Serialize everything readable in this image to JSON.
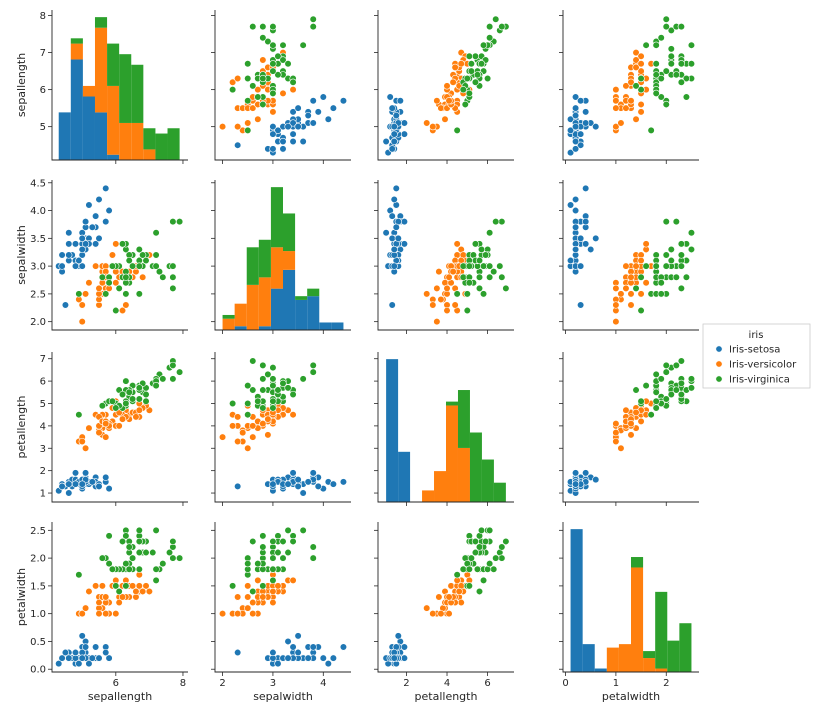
{
  "chart_data": {
    "type": "scatter",
    "variables": [
      "sepallength",
      "sepalwidth",
      "petallength",
      "petalwidth"
    ],
    "legend": {
      "title": "iris",
      "placement": "center-right",
      "entries": [
        "Iris-setosa",
        "Iris-versicolor",
        "Iris-virginica"
      ]
    },
    "colors": {
      "Iris-setosa": "#1f77b4",
      "Iris-versicolor": "#ff7f0e",
      "Iris-virginica": "#2ca02c"
    },
    "diagonal": "stacked-histogram",
    "grid": false,
    "axes": [
      {
        "var": "sepallength",
        "lim": [
          4.1,
          8.15
        ],
        "ticks": [
          6,
          8
        ],
        "ytick_labels": [
          "5",
          "6",
          "7",
          "8"
        ],
        "yticks": [
          5,
          6,
          7,
          8
        ]
      },
      {
        "var": "sepalwidth",
        "lim": [
          1.85,
          4.55
        ],
        "ticks": [
          2,
          3,
          4
        ],
        "ytick_labels": [
          "2.0",
          "2.5",
          "3.0",
          "3.5",
          "4.0",
          "4.5"
        ],
        "yticks": [
          2.0,
          2.5,
          3.0,
          3.5,
          4.0,
          4.5
        ]
      },
      {
        "var": "petallength",
        "lim": [
          0.6,
          7.3
        ],
        "ticks": [
          2,
          4,
          6
        ],
        "ytick_labels": [
          "1",
          "2",
          "3",
          "4",
          "5",
          "6",
          "7"
        ],
        "yticks": [
          1,
          2,
          3,
          4,
          5,
          6,
          7
        ]
      },
      {
        "var": "petalwidth",
        "lim": [
          -0.05,
          2.65
        ],
        "ticks": [
          0,
          1,
          2
        ],
        "ytick_labels": [
          "0.0",
          "0.5",
          "1.0",
          "1.5",
          "2.0",
          "2.5"
        ],
        "yticks": [
          0.0,
          0.5,
          1.0,
          1.5,
          2.0,
          2.5
        ]
      }
    ],
    "xtick_labels": [
      [
        "6",
        "8"
      ],
      [
        "2",
        "3",
        "4"
      ],
      [
        "2",
        "4",
        "6"
      ],
      [
        "0",
        "1",
        "2"
      ]
    ],
    "series": [
      {
        "name": "Iris-setosa",
        "sepallength": [
          5.1,
          4.9,
          4.7,
          4.6,
          5.0,
          5.4,
          4.6,
          5.0,
          4.4,
          4.9,
          5.4,
          4.8,
          4.8,
          4.3,
          5.8,
          5.7,
          5.4,
          5.1,
          5.7,
          5.1,
          5.4,
          5.1,
          4.6,
          5.1,
          4.8,
          5.0,
          5.0,
          5.2,
          5.2,
          4.7,
          4.8,
          5.4,
          5.2,
          5.5,
          4.9,
          5.0,
          5.5,
          4.9,
          4.4,
          5.1,
          5.0,
          4.5,
          4.4,
          5.0,
          5.1,
          4.8,
          5.1,
          4.6,
          5.3,
          5.0
        ],
        "sepalwidth": [
          3.5,
          3.0,
          3.2,
          3.1,
          3.6,
          3.9,
          3.4,
          3.4,
          2.9,
          3.1,
          3.7,
          3.4,
          3.0,
          3.0,
          4.0,
          4.4,
          3.9,
          3.5,
          3.8,
          3.8,
          3.4,
          3.7,
          3.6,
          3.3,
          3.4,
          3.0,
          3.4,
          3.5,
          3.4,
          3.2,
          3.1,
          3.4,
          4.1,
          4.2,
          3.1,
          3.2,
          3.5,
          3.1,
          3.0,
          3.4,
          3.5,
          2.3,
          3.2,
          3.5,
          3.8,
          3.0,
          3.8,
          3.2,
          3.7,
          3.3
        ],
        "petallength": [
          1.4,
          1.4,
          1.3,
          1.5,
          1.4,
          1.7,
          1.4,
          1.5,
          1.4,
          1.5,
          1.5,
          1.6,
          1.4,
          1.1,
          1.2,
          1.5,
          1.3,
          1.4,
          1.7,
          1.5,
          1.7,
          1.5,
          1.0,
          1.7,
          1.9,
          1.6,
          1.6,
          1.5,
          1.4,
          1.6,
          1.6,
          1.5,
          1.5,
          1.4,
          1.5,
          1.2,
          1.3,
          1.5,
          1.3,
          1.5,
          1.3,
          1.3,
          1.3,
          1.6,
          1.9,
          1.4,
          1.6,
          1.4,
          1.5,
          1.4
        ],
        "petalwidth": [
          0.2,
          0.2,
          0.2,
          0.2,
          0.2,
          0.4,
          0.3,
          0.2,
          0.2,
          0.1,
          0.2,
          0.2,
          0.1,
          0.1,
          0.2,
          0.4,
          0.4,
          0.3,
          0.3,
          0.3,
          0.2,
          0.4,
          0.2,
          0.5,
          0.2,
          0.2,
          0.4,
          0.2,
          0.2,
          0.2,
          0.2,
          0.4,
          0.1,
          0.2,
          0.1,
          0.2,
          0.2,
          0.1,
          0.2,
          0.2,
          0.3,
          0.3,
          0.2,
          0.6,
          0.4,
          0.3,
          0.2,
          0.2,
          0.2,
          0.2
        ]
      },
      {
        "name": "Iris-versicolor",
        "sepallength": [
          7.0,
          6.4,
          6.9,
          5.5,
          6.5,
          5.7,
          6.3,
          4.9,
          6.6,
          5.2,
          5.0,
          5.9,
          6.0,
          6.1,
          5.6,
          6.7,
          5.6,
          5.8,
          6.2,
          5.6,
          5.9,
          6.1,
          6.3,
          6.1,
          6.4,
          6.6,
          6.8,
          6.7,
          6.0,
          5.7,
          5.5,
          5.5,
          5.8,
          6.0,
          5.4,
          6.0,
          6.7,
          6.3,
          5.6,
          5.5,
          5.5,
          6.1,
          5.8,
          5.0,
          5.6,
          5.7,
          5.7,
          6.2,
          5.1,
          5.7
        ],
        "sepalwidth": [
          3.2,
          3.2,
          3.1,
          2.3,
          2.8,
          2.8,
          3.3,
          2.4,
          2.9,
          2.7,
          2.0,
          3.0,
          2.2,
          2.9,
          2.9,
          3.1,
          3.0,
          2.7,
          2.2,
          2.5,
          3.2,
          2.8,
          2.5,
          2.8,
          2.9,
          3.0,
          2.8,
          3.0,
          2.9,
          2.6,
          2.4,
          2.4,
          2.7,
          2.7,
          3.0,
          3.4,
          3.1,
          2.3,
          3.0,
          2.5,
          2.6,
          3.0,
          2.6,
          2.3,
          2.7,
          3.0,
          2.9,
          2.9,
          2.5,
          2.8
        ],
        "petallength": [
          4.7,
          4.5,
          4.9,
          4.0,
          4.6,
          4.5,
          4.7,
          3.3,
          4.6,
          3.9,
          3.5,
          4.2,
          4.0,
          4.7,
          3.6,
          4.4,
          4.5,
          4.1,
          4.5,
          3.9,
          4.8,
          4.0,
          4.9,
          4.7,
          4.3,
          4.4,
          4.8,
          5.0,
          4.5,
          3.5,
          3.8,
          3.7,
          3.9,
          5.1,
          4.5,
          4.5,
          4.7,
          4.4,
          4.1,
          4.0,
          4.4,
          4.6,
          4.0,
          3.3,
          4.2,
          4.2,
          4.2,
          4.3,
          3.0,
          4.1
        ],
        "petalwidth": [
          1.4,
          1.5,
          1.5,
          1.3,
          1.5,
          1.3,
          1.6,
          1.0,
          1.3,
          1.4,
          1.0,
          1.5,
          1.0,
          1.4,
          1.3,
          1.4,
          1.5,
          1.0,
          1.5,
          1.1,
          1.8,
          1.3,
          1.5,
          1.2,
          1.3,
          1.4,
          1.4,
          1.7,
          1.5,
          1.0,
          1.1,
          1.0,
          1.2,
          1.6,
          1.5,
          1.6,
          1.5,
          1.3,
          1.3,
          1.3,
          1.2,
          1.4,
          1.2,
          1.0,
          1.3,
          1.2,
          1.3,
          1.3,
          1.1,
          1.3
        ]
      },
      {
        "name": "Iris-virginica",
        "sepallength": [
          6.3,
          5.8,
          7.1,
          6.3,
          6.5,
          7.6,
          4.9,
          7.3,
          6.7,
          7.2,
          6.5,
          6.4,
          6.8,
          5.7,
          5.8,
          6.4,
          6.5,
          7.7,
          7.7,
          6.0,
          6.9,
          5.6,
          7.7,
          6.3,
          6.7,
          7.2,
          6.2,
          6.1,
          6.4,
          7.2,
          7.4,
          7.9,
          6.4,
          6.3,
          6.1,
          7.7,
          6.3,
          6.4,
          6.0,
          6.9,
          6.7,
          6.9,
          5.8,
          6.8,
          6.7,
          6.7,
          6.3,
          6.5,
          6.2,
          5.9
        ],
        "sepalwidth": [
          3.3,
          2.7,
          3.0,
          2.9,
          3.0,
          3.0,
          2.5,
          2.9,
          2.5,
          3.6,
          3.2,
          2.7,
          3.0,
          2.5,
          2.8,
          3.2,
          3.0,
          3.8,
          2.6,
          2.2,
          3.2,
          2.8,
          2.8,
          2.7,
          3.3,
          3.2,
          2.8,
          3.0,
          2.8,
          3.0,
          2.8,
          3.8,
          2.8,
          2.8,
          2.6,
          3.0,
          3.4,
          3.1,
          3.0,
          3.1,
          3.1,
          3.1,
          2.7,
          3.2,
          3.3,
          3.0,
          2.5,
          3.0,
          3.4,
          3.0
        ],
        "petallength": [
          6.0,
          5.1,
          5.9,
          5.6,
          5.8,
          6.6,
          4.5,
          6.3,
          5.8,
          6.1,
          5.1,
          5.3,
          5.5,
          5.0,
          5.1,
          5.3,
          5.5,
          6.7,
          6.9,
          5.0,
          5.7,
          4.9,
          6.7,
          4.9,
          5.7,
          6.0,
          4.8,
          4.9,
          5.6,
          5.8,
          6.1,
          6.4,
          5.6,
          5.1,
          5.6,
          6.1,
          5.6,
          5.5,
          4.8,
          5.4,
          5.6,
          5.1,
          5.1,
          5.9,
          5.7,
          5.2,
          5.0,
          5.2,
          5.4,
          5.1
        ],
        "petalwidth": [
          2.5,
          1.9,
          2.1,
          1.8,
          2.2,
          2.1,
          1.7,
          1.8,
          1.8,
          2.5,
          2.0,
          1.9,
          2.1,
          2.0,
          2.4,
          2.3,
          1.8,
          2.2,
          2.3,
          1.5,
          2.3,
          2.0,
          2.0,
          1.8,
          2.1,
          1.8,
          1.8,
          1.8,
          2.1,
          1.6,
          1.9,
          2.0,
          2.2,
          1.5,
          1.4,
          2.3,
          2.4,
          1.8,
          1.8,
          2.1,
          2.4,
          2.3,
          1.9,
          2.3,
          2.5,
          2.3,
          1.9,
          2.0,
          2.3,
          1.8
        ]
      }
    ]
  }
}
